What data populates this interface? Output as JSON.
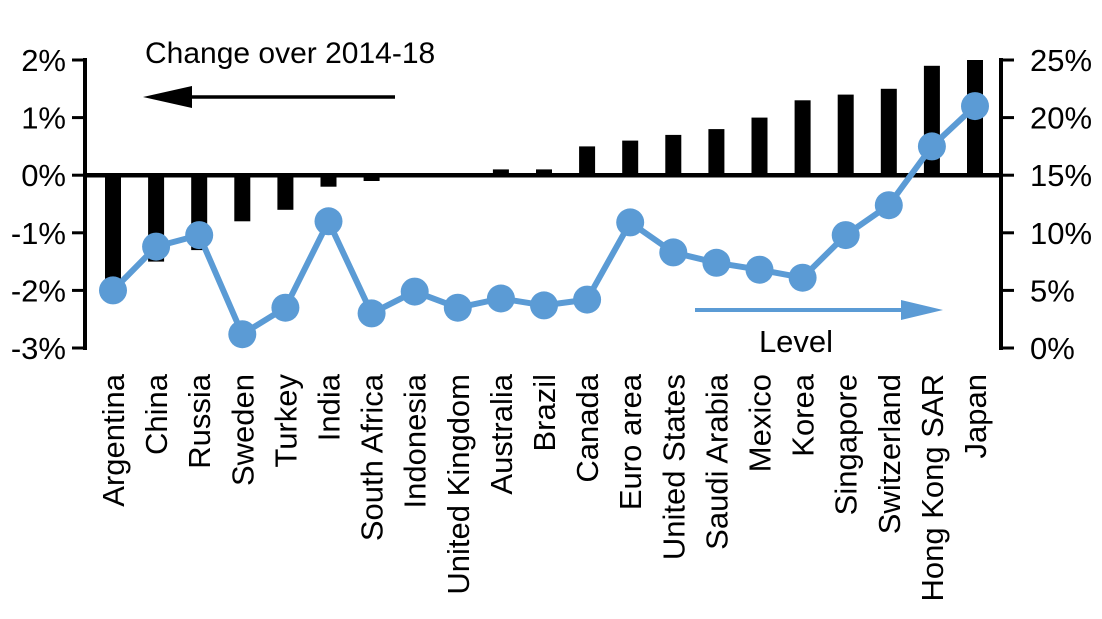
{
  "chart_data": {
    "type": "combo-bar-line",
    "categories": [
      "Argentina",
      "China",
      "Russia",
      "Sweden",
      "Turkey",
      "India",
      "South Africa",
      "Indonesia",
      "United Kingdom",
      "Australia",
      "Brazil",
      "Canada",
      "Euro area",
      "United States",
      "Saudi Arabia",
      "Mexico",
      "Korea",
      "Singapore",
      "Switzerland",
      "Hong Kong SAR",
      "Japan"
    ],
    "series": [
      {
        "name": "Change over 2014-18",
        "type": "bar",
        "axis": "left",
        "unit": "%",
        "values": [
          -1.8,
          -1.5,
          -1.3,
          -0.8,
          -0.6,
          -0.2,
          -0.1,
          0.0,
          0.0,
          0.1,
          0.1,
          0.5,
          0.6,
          0.7,
          0.8,
          1.0,
          1.3,
          1.4,
          1.5,
          1.9,
          2.0
        ]
      },
      {
        "name": "Level",
        "type": "line",
        "axis": "right",
        "unit": "%",
        "values": [
          5.0,
          8.8,
          9.8,
          1.2,
          3.5,
          11.0,
          3.0,
          4.9,
          3.5,
          4.3,
          3.7,
          4.2,
          10.9,
          8.3,
          7.4,
          6.8,
          6.1,
          9.8,
          12.4,
          17.5,
          21.0
        ]
      }
    ],
    "left_axis": {
      "min": -3,
      "max": 2,
      "tick_values": [
        2,
        1,
        0,
        -1,
        -2,
        -3
      ],
      "tick_labels": [
        "2%",
        "1%",
        "0%",
        "-1%",
        "-2%",
        "-3%"
      ]
    },
    "right_axis": {
      "min": 0,
      "max": 25,
      "tick_values": [
        25,
        20,
        15,
        10,
        5,
        0
      ],
      "tick_labels": [
        "25%",
        "20%",
        "15%",
        "10%",
        "5%",
        "0%"
      ]
    },
    "labels": {
      "bar_series": "Change over 2014-18",
      "line_series": "Level"
    },
    "colors": {
      "bar": "#000000",
      "line": "#5b9bd5",
      "text": "#000000",
      "background": "#ffffff"
    },
    "grid": false,
    "legend_position": "in-plot annotations with direction arrows"
  }
}
